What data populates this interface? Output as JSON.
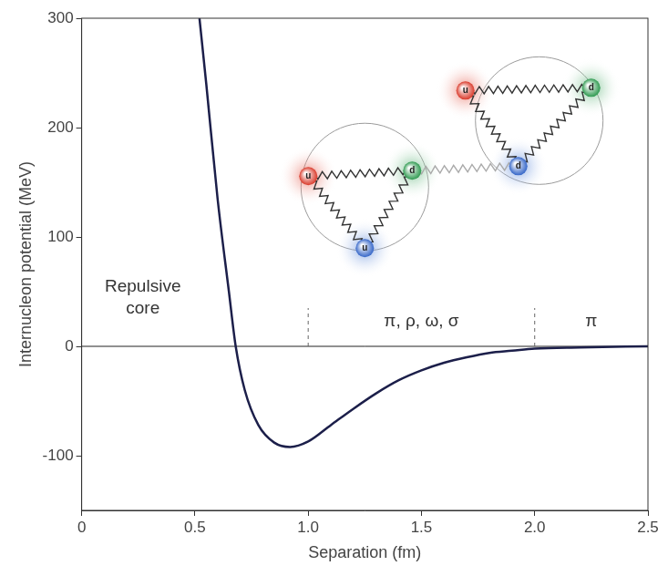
{
  "chart_data": {
    "type": "line",
    "x_label": "Separation (fm)",
    "y_label": "Internucleon potential (MeV)",
    "x": [
      0.52,
      0.55,
      0.6,
      0.65,
      0.68,
      0.72,
      0.78,
      0.85,
      0.92,
      1.0,
      1.1,
      1.2,
      1.3,
      1.4,
      1.5,
      1.6,
      1.7,
      1.8,
      1.9,
      2.0,
      2.2,
      2.5
    ],
    "values": [
      300,
      240,
      135,
      50,
      0,
      -40,
      -72,
      -88,
      -92,
      -87,
      -72,
      -57,
      -43,
      -31,
      -22,
      -15,
      -10,
      -6,
      -4,
      -2,
      -1,
      0
    ],
    "color": "#1c1f4a",
    "xlim": [
      0,
      2.5
    ],
    "ylim": [
      -150,
      300
    ],
    "xticks": [
      0,
      0.5,
      {
        "value": 1,
        "label": "1.0"
      },
      1.5,
      {
        "value": 2,
        "label": "2.0"
      },
      2.5
    ],
    "yticks": [
      -100,
      0,
      100,
      200,
      300
    ],
    "grid": false,
    "annotations": [
      {
        "text": "Repulsive core",
        "x": 0.27,
        "y": 50
      },
      {
        "text": "π, ρ, ω, σ",
        "x": 1.5,
        "y": 18
      },
      {
        "text": "π",
        "x": 2.25,
        "y": 18
      }
    ],
    "region_bounds": [
      1,
      2
    ],
    "nucleons": [
      {
        "quarks": [
          "u",
          "d",
          "u"
        ]
      },
      {
        "quarks": [
          "u",
          "d",
          "d"
        ]
      }
    ]
  }
}
